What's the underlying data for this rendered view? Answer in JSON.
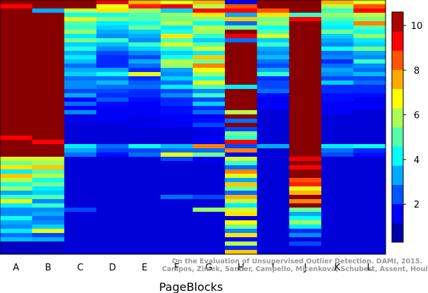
{
  "chart_data": {
    "type": "heatmap",
    "title": "",
    "xlabel": "PageBlocks",
    "ylabel": "",
    "categories": [
      "A",
      "B",
      "C",
      "D",
      "E",
      "F",
      "G",
      "H",
      "I",
      "J",
      "K",
      "L"
    ],
    "colorbar": {
      "scale": "jet",
      "range": [
        0.3,
        10.6
      ],
      "ticks": [
        2,
        4,
        6,
        8,
        10
      ]
    },
    "rows": 60,
    "row_order": "top-to-bottom",
    "columns": [
      {
        "name": "A",
        "values": [
          10.5,
          9.3,
          10.5,
          10.5,
          10.5,
          10.5,
          10.5,
          10.5,
          10.5,
          10.5,
          10.5,
          10.5,
          10.5,
          10.5,
          10.5,
          10.5,
          10.5,
          10.5,
          10.5,
          10.5,
          10.5,
          10.5,
          10.5,
          10.5,
          10.5,
          10.5,
          10.5,
          10.5,
          10.5,
          10.5,
          10.5,
          10.5,
          9.3,
          10.5,
          10.5,
          10.5,
          10.5,
          6.3,
          5.3,
          7.0,
          4.0,
          7.3,
          6.0,
          4.5,
          5.7,
          3.3,
          4.7,
          6.5,
          4.0,
          3.0,
          3.0,
          4.3,
          3.3,
          3.0,
          4.0,
          2.7,
          3.5,
          1.0,
          1.0,
          1.0
        ]
      },
      {
        "name": "B",
        "values": [
          10.5,
          10.5,
          3.3,
          10.5,
          10.5,
          10.5,
          10.5,
          10.5,
          10.5,
          10.5,
          10.5,
          10.5,
          10.5,
          10.5,
          10.5,
          10.5,
          10.5,
          10.5,
          10.5,
          10.5,
          10.5,
          10.5,
          10.5,
          10.5,
          10.5,
          10.5,
          10.5,
          10.5,
          10.5,
          10.5,
          10.5,
          10.5,
          10.5,
          9.3,
          10.5,
          10.5,
          10.5,
          6.3,
          5.7,
          7.3,
          5.0,
          6.0,
          4.3,
          5.3,
          4.0,
          3.7,
          5.0,
          3.0,
          4.7,
          3.0,
          3.3,
          2.7,
          3.0,
          3.7,
          6.5,
          2.3,
          3.3,
          1.0,
          1.0,
          1.0
        ]
      },
      {
        "name": "C",
        "values": [
          10.5,
          10.5,
          6.0,
          4.3,
          6.5,
          5.0,
          4.7,
          5.7,
          4.0,
          5.3,
          3.7,
          4.5,
          3.3,
          4.0,
          3.5,
          2.7,
          3.3,
          3.7,
          2.7,
          3.0,
          3.0,
          2.3,
          3.3,
          1.5,
          2.7,
          1.5,
          3.0,
          1.2,
          1.5,
          1.2,
          1.2,
          1.2,
          1.2,
          1.2,
          4.0,
          3.3,
          2.7,
          1.2,
          1.2,
          1.2,
          1.2,
          1.2,
          1.2,
          1.2,
          1.2,
          1.2,
          1.2,
          1.2,
          1.2,
          2.3,
          1.2,
          1.2,
          1.2,
          1.2,
          1.2,
          1.2,
          1.2,
          1.2,
          1.2,
          1.2
        ]
      },
      {
        "name": "D",
        "values": [
          9.5,
          6.5,
          7.0,
          4.3,
          5.5,
          4.0,
          3.7,
          3.3,
          3.0,
          4.7,
          3.5,
          3.0,
          2.3,
          2.0,
          2.0,
          2.0,
          3.3,
          4.3,
          2.7,
          3.5,
          2.7,
          2.3,
          2.0,
          2.5,
          1.7,
          1.5,
          1.5,
          1.5,
          1.5,
          1.2,
          1.2,
          1.2,
          1.2,
          1.2,
          2.7,
          2.3,
          1.7,
          1.2,
          1.2,
          1.2,
          1.2,
          1.2,
          1.2,
          1.2,
          1.2,
          1.2,
          1.2,
          1.2,
          1.2,
          1.2,
          1.2,
          1.2,
          1.2,
          1.2,
          1.2,
          1.2,
          1.2,
          1.2,
          1.2,
          1.2
        ]
      },
      {
        "name": "E",
        "values": [
          7.5,
          9.0,
          5.7,
          5.0,
          5.0,
          4.3,
          5.3,
          3.7,
          3.3,
          3.0,
          4.7,
          3.7,
          3.0,
          2.3,
          3.3,
          2.7,
          2.0,
          6.5,
          2.0,
          2.5,
          2.7,
          2.0,
          2.0,
          1.7,
          1.5,
          1.5,
          1.5,
          1.5,
          1.2,
          1.5,
          1.2,
          1.2,
          1.2,
          1.2,
          4.3,
          2.3,
          2.7,
          1.2,
          1.2,
          1.2,
          1.2,
          1.2,
          1.2,
          1.2,
          1.2,
          1.2,
          1.2,
          1.2,
          1.2,
          1.2,
          1.2,
          1.2,
          1.2,
          1.2,
          1.2,
          1.2,
          1.2,
          1.2,
          1.2,
          1.2
        ]
      },
      {
        "name": "F",
        "values": [
          6.5,
          9.5,
          3.7,
          5.7,
          5.3,
          6.0,
          4.0,
          4.5,
          7.0,
          5.0,
          6.3,
          4.7,
          3.7,
          4.3,
          6.0,
          5.7,
          3.3,
          3.0,
          3.7,
          2.7,
          4.0,
          2.3,
          3.0,
          2.0,
          2.0,
          1.7,
          1.7,
          1.5,
          1.5,
          1.5,
          1.2,
          1.2,
          1.2,
          1.2,
          3.5,
          2.7,
          6.5,
          2.3,
          1.2,
          1.2,
          1.2,
          1.2,
          1.2,
          1.2,
          1.2,
          1.2,
          2.7,
          1.2,
          1.2,
          1.2,
          1.2,
          1.2,
          1.2,
          1.2,
          1.2,
          1.2,
          1.2,
          1.2,
          1.2,
          1.2
        ]
      },
      {
        "name": "G",
        "values": [
          7.5,
          6.0,
          9.3,
          7.0,
          5.5,
          4.3,
          6.0,
          5.7,
          4.7,
          3.7,
          5.0,
          6.3,
          4.0,
          7.3,
          5.3,
          8.0,
          6.7,
          5.7,
          4.3,
          6.5,
          5.0,
          3.0,
          4.7,
          2.3,
          3.7,
          2.0,
          2.7,
          1.5,
          1.7,
          2.3,
          1.5,
          1.2,
          1.5,
          1.5,
          8.0,
          2.7,
          5.3,
          1.5,
          1.2,
          1.2,
          1.2,
          1.2,
          1.2,
          1.2,
          1.2,
          1.2,
          2.3,
          1.2,
          1.2,
          5.7,
          1.2,
          1.2,
          1.2,
          1.2,
          1.2,
          1.2,
          1.2,
          1.2,
          1.2,
          1.2
        ]
      },
      {
        "name": "H",
        "values": [
          1.5,
          8.5,
          9.3,
          3.3,
          7.3,
          2.7,
          5.3,
          10.5,
          9.5,
          2.7,
          10.5,
          10.5,
          10.5,
          10.5,
          10.5,
          10.5,
          10.5,
          10.5,
          10.5,
          10.5,
          4.0,
          10.5,
          10.5,
          10.5,
          10.5,
          10.5,
          6.0,
          10.5,
          2.7,
          10.5,
          2.3,
          5.3,
          4.7,
          9.3,
          2.3,
          8.0,
          1.5,
          6.3,
          4.7,
          2.7,
          8.0,
          6.5,
          3.3,
          7.3,
          5.3,
          2.7,
          7.5,
          6.0,
          4.0,
          6.3,
          7.0,
          1.2,
          6.7,
          5.3,
          3.0,
          7.0,
          1.5,
          6.0,
          2.0,
          7.3
        ]
      },
      {
        "name": "I",
        "values": [
          10.5,
          10.5,
          8.5,
          7.0,
          5.3,
          5.7,
          4.3,
          5.0,
          6.3,
          3.7,
          4.7,
          3.3,
          3.0,
          3.5,
          2.7,
          2.3,
          3.3,
          4.7,
          2.0,
          2.3,
          2.3,
          2.7,
          1.7,
          1.5,
          1.5,
          1.5,
          1.2,
          1.2,
          1.2,
          1.2,
          1.2,
          1.2,
          1.2,
          1.2,
          3.3,
          1.2,
          1.2,
          1.2,
          1.2,
          1.2,
          1.2,
          1.2,
          1.2,
          1.2,
          1.2,
          1.2,
          1.2,
          1.2,
          1.2,
          1.2,
          1.2,
          1.2,
          1.2,
          1.2,
          1.2,
          1.2,
          1.2,
          1.2,
          1.2,
          1.2
        ]
      },
      {
        "name": "J",
        "values": [
          10.5,
          10.5,
          10.5,
          4.7,
          9.3,
          10.5,
          10.5,
          10.5,
          10.5,
          10.5,
          10.5,
          10.5,
          10.5,
          10.5,
          10.5,
          10.5,
          10.5,
          10.5,
          10.5,
          10.5,
          10.5,
          10.5,
          10.5,
          10.5,
          10.5,
          10.5,
          10.5,
          10.5,
          10.5,
          10.5,
          10.5,
          10.5,
          10.5,
          10.5,
          10.5,
          10.5,
          10.5,
          9.5,
          10.5,
          9.3,
          10.5,
          10.5,
          8.5,
          9.0,
          6.5,
          7.5,
          10.5,
          8.0,
          10.5,
          5.3,
          3.3,
          4.3,
          5.7,
          4.0,
          2.0,
          3.0,
          1.2,
          2.3,
          1.2,
          1.2
        ]
      },
      {
        "name": "K",
        "values": [
          7.5,
          6.0,
          4.7,
          5.7,
          5.0,
          4.3,
          4.0,
          5.3,
          3.7,
          3.3,
          3.0,
          4.3,
          2.7,
          3.0,
          2.0,
          2.7,
          3.3,
          3.0,
          2.3,
          3.7,
          2.0,
          2.0,
          1.7,
          1.7,
          1.5,
          1.5,
          1.5,
          1.2,
          1.2,
          1.2,
          1.2,
          1.2,
          1.2,
          1.2,
          4.0,
          2.7,
          2.3,
          1.2,
          1.2,
          1.2,
          1.2,
          1.2,
          1.2,
          1.2,
          1.2,
          1.2,
          1.2,
          1.2,
          1.2,
          1.2,
          1.2,
          1.2,
          1.2,
          1.2,
          1.2,
          1.2,
          1.2,
          1.2,
          1.2,
          1.2
        ]
      },
      {
        "name": "L",
        "values": [
          6.5,
          8.5,
          9.3,
          6.0,
          5.5,
          8.0,
          5.0,
          4.3,
          5.7,
          4.0,
          3.7,
          5.3,
          3.3,
          3.0,
          4.7,
          3.0,
          2.7,
          3.5,
          2.3,
          2.7,
          2.0,
          2.0,
          1.7,
          1.5,
          1.5,
          1.5,
          1.2,
          1.2,
          1.2,
          1.2,
          1.2,
          1.2,
          1.2,
          1.2,
          4.3,
          2.0,
          1.7,
          1.2,
          1.2,
          1.2,
          1.2,
          1.2,
          1.2,
          1.2,
          1.2,
          1.2,
          1.2,
          1.2,
          1.2,
          1.2,
          1.2,
          1.2,
          1.2,
          1.2,
          1.2,
          1.2,
          1.2,
          1.2,
          1.2,
          1.2
        ]
      }
    ]
  },
  "watermark": {
    "line1": "On the Evaluation of Unsupervised Outlier Detection. DAMI, 2015.",
    "line2": "Campos, Zimek, Sander, Campello, Micenková, Schubert, Assent, Houle"
  }
}
